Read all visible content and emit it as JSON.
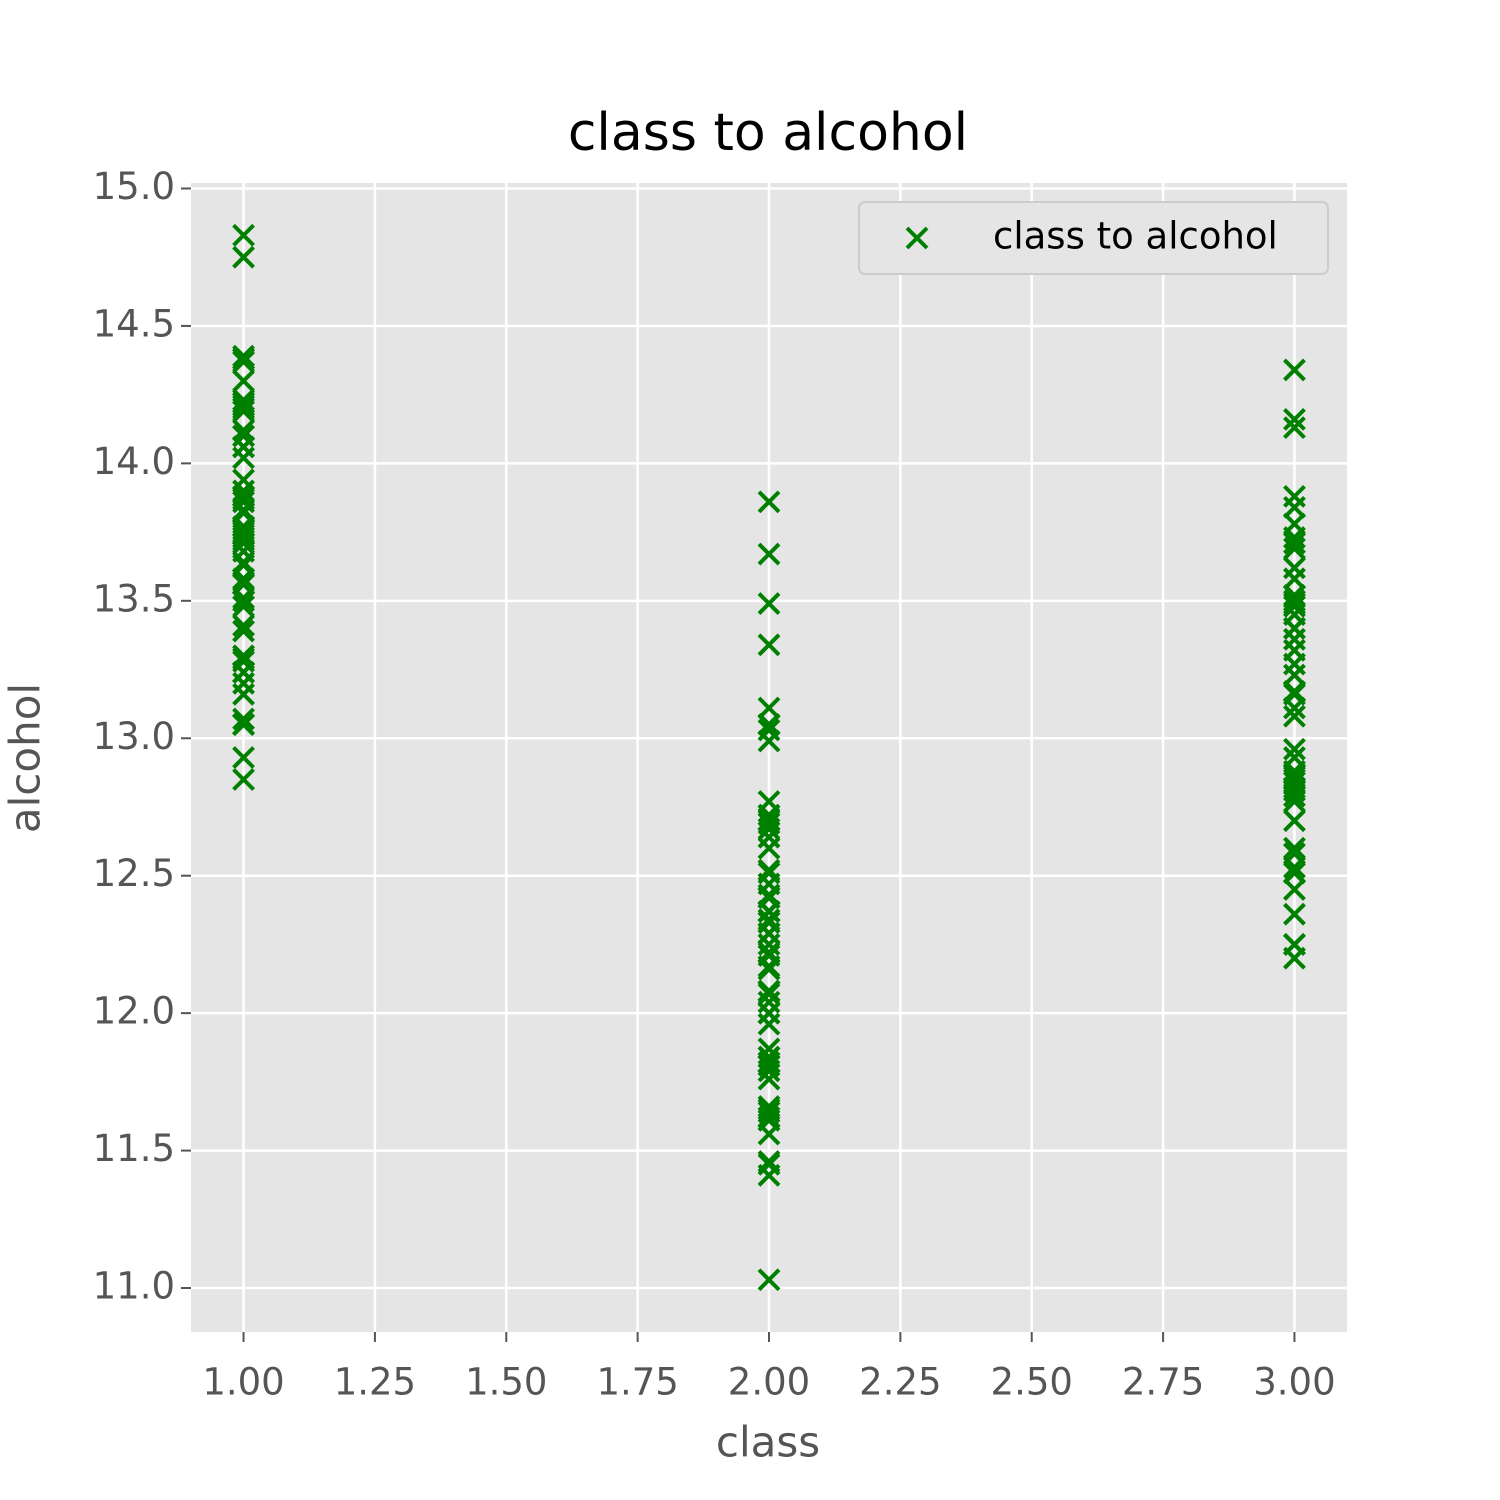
{
  "chart_data": {
    "type": "scatter",
    "title": "class to alcohol",
    "xlabel": "class",
    "ylabel": "alcohol",
    "xlim": [
      0.9,
      3.1
    ],
    "ylim": [
      10.84,
      15.02
    ],
    "xticks": [
      {
        "value": 1,
        "label": "1.00"
      },
      {
        "value": 1.25,
        "label": "1.25"
      },
      {
        "value": 1.5,
        "label": "1.50"
      },
      {
        "value": 1.75,
        "label": "1.75"
      },
      {
        "value": 2,
        "label": "2.00"
      },
      {
        "value": 2.25,
        "label": "2.25"
      },
      {
        "value": 2.5,
        "label": "2.50"
      },
      {
        "value": 2.75,
        "label": "2.75"
      },
      {
        "value": 3,
        "label": "3.00"
      }
    ],
    "yticks": [
      {
        "value": 11,
        "label": "11.0"
      },
      {
        "value": 11.5,
        "label": "11.5"
      },
      {
        "value": 12,
        "label": "12.0"
      },
      {
        "value": 12.5,
        "label": "12.5"
      },
      {
        "value": 13,
        "label": "13.0"
      },
      {
        "value": 13.5,
        "label": "13.5"
      },
      {
        "value": 14,
        "label": "14.0"
      },
      {
        "value": 14.5,
        "label": "14.5"
      },
      {
        "value": 15,
        "label": "15.0"
      }
    ],
    "grid": true,
    "legend": "upper right",
    "series": [
      {
        "name": "class to alcohol",
        "color": "#008000",
        "marker": "x",
        "x": [
          1,
          1,
          1,
          1,
          1,
          1,
          1,
          1,
          1,
          1,
          1,
          1,
          1,
          1,
          1,
          1,
          1,
          1,
          1,
          1,
          1,
          1,
          1,
          1,
          1,
          1,
          1,
          1,
          1,
          1,
          1,
          1,
          1,
          1,
          1,
          1,
          1,
          1,
          1,
          1,
          1,
          1,
          1,
          1,
          1,
          1,
          1,
          1,
          1,
          1,
          1,
          1,
          1,
          1,
          1,
          1,
          1,
          1,
          1,
          2,
          2,
          2,
          2,
          2,
          2,
          2,
          2,
          2,
          2,
          2,
          2,
          2,
          2,
          2,
          2,
          2,
          2,
          2,
          2,
          2,
          2,
          2,
          2,
          2,
          2,
          2,
          2,
          2,
          2,
          2,
          2,
          2,
          2,
          2,
          2,
          2,
          2,
          2,
          2,
          2,
          2,
          2,
          2,
          2,
          2,
          2,
          2,
          2,
          2,
          2,
          2,
          2,
          2,
          2,
          2,
          2,
          2,
          2,
          2,
          2,
          2,
          2,
          2,
          2,
          2,
          2,
          2,
          2,
          2,
          2,
          3,
          3,
          3,
          3,
          3,
          3,
          3,
          3,
          3,
          3,
          3,
          3,
          3,
          3,
          3,
          3,
          3,
          3,
          3,
          3,
          3,
          3,
          3,
          3,
          3,
          3,
          3,
          3,
          3,
          3,
          3,
          3,
          3,
          3,
          3,
          3,
          3,
          3,
          3,
          3,
          3,
          3,
          3,
          3,
          3,
          3,
          3,
          3
        ],
        "values": [
          14.23,
          13.2,
          13.16,
          14.37,
          13.24,
          14.2,
          14.39,
          14.06,
          14.83,
          13.86,
          14.1,
          14.12,
          13.75,
          14.75,
          14.38,
          13.63,
          14.3,
          13.83,
          14.19,
          13.64,
          14.06,
          12.93,
          13.71,
          12.85,
          13.5,
          13.05,
          13.39,
          13.3,
          13.87,
          14.02,
          13.73,
          13.58,
          13.68,
          13.76,
          13.51,
          13.48,
          13.28,
          13.05,
          13.07,
          14.22,
          13.56,
          13.41,
          13.88,
          13.24,
          13.05,
          14.21,
          14.38,
          13.9,
          14.1,
          13.94,
          13.05,
          13.83,
          13.82,
          13.77,
          13.74,
          13.56,
          14.22,
          13.29,
          13.72,
          12.37,
          12.33,
          12.64,
          13.67,
          12.37,
          12.17,
          12.37,
          13.11,
          12.37,
          13.34,
          12.21,
          12.29,
          13.86,
          13.49,
          12.99,
          11.96,
          11.66,
          13.03,
          11.84,
          12.33,
          12.7,
          12,
          12.72,
          12.08,
          13.05,
          11.84,
          12.67,
          12.16,
          11.65,
          11.64,
          12.08,
          12.08,
          12,
          12.69,
          12.29,
          11.62,
          12.47,
          11.81,
          12.29,
          12.37,
          12.29,
          12.08,
          12.6,
          12.34,
          11.82,
          12.51,
          12.42,
          12.25,
          12.72,
          12.22,
          11.61,
          11.46,
          12.52,
          11.76,
          11.41,
          12.08,
          11.03,
          11.82,
          12.42,
          12.77,
          12,
          11.45,
          11.56,
          12.42,
          13.05,
          11.87,
          12.07,
          12.43,
          11.79,
          12.37,
          12.04,
          12.86,
          12.88,
          12.81,
          12.7,
          12.51,
          12.6,
          12.25,
          12.53,
          13.49,
          12.84,
          12.93,
          13.36,
          13.52,
          13.62,
          12.25,
          13.16,
          13.88,
          12.87,
          13.32,
          13.08,
          13.5,
          12.79,
          13.11,
          13.23,
          12.58,
          13.17,
          13.84,
          12.45,
          14.34,
          13.48,
          12.36,
          13.69,
          12.85,
          12.96,
          13.78,
          13.73,
          13.45,
          12.82,
          13.58,
          13.4,
          12.2,
          12.77,
          14.16,
          13.71,
          13.4,
          13.27,
          13.17,
          14.13
        ]
      }
    ]
  }
}
